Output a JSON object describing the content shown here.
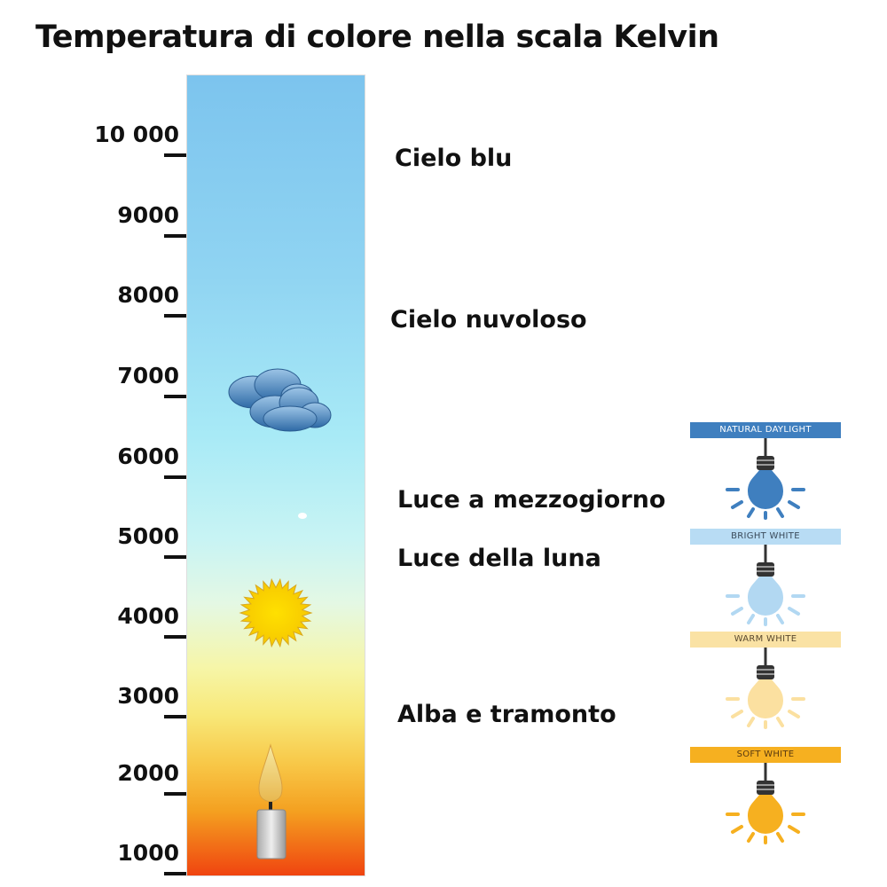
{
  "title": "Temperatura di colore nella scala Kelvin",
  "scale": {
    "ticks": [
      "10 000",
      "9000",
      "8000",
      "7000",
      "6000",
      "5000",
      "4000",
      "3000",
      "2000",
      "1000"
    ]
  },
  "annotations": [
    "Cielo blu",
    "Cielo nuvoloso",
    "Luce a mezzogiorno",
    "Luce della luna",
    "Alba e tramonto"
  ],
  "bulbs": [
    {
      "label": "NATURAL DAYLIGHT",
      "header_color": "#3f7fbf",
      "text_color": "#ffffff",
      "bulb_color": "#3f7fbf"
    },
    {
      "label": "BRIGHT WHITE",
      "header_color": "#b8dcf4",
      "text_color": "#3a4a5a",
      "bulb_color": "#b2d8f2"
    },
    {
      "label": "WARM WHITE",
      "header_color": "#fae2a4",
      "text_color": "#5a4a30",
      "bulb_color": "#fbe0a0"
    },
    {
      "label": "SOFT WHITE",
      "header_color": "#f6b020",
      "text_color": "#5a3a10",
      "bulb_color": "#f6b020"
    }
  ],
  "icons": [
    "cloud-icon",
    "sun-icon",
    "candle-icon",
    "moon-dot-icon"
  ]
}
